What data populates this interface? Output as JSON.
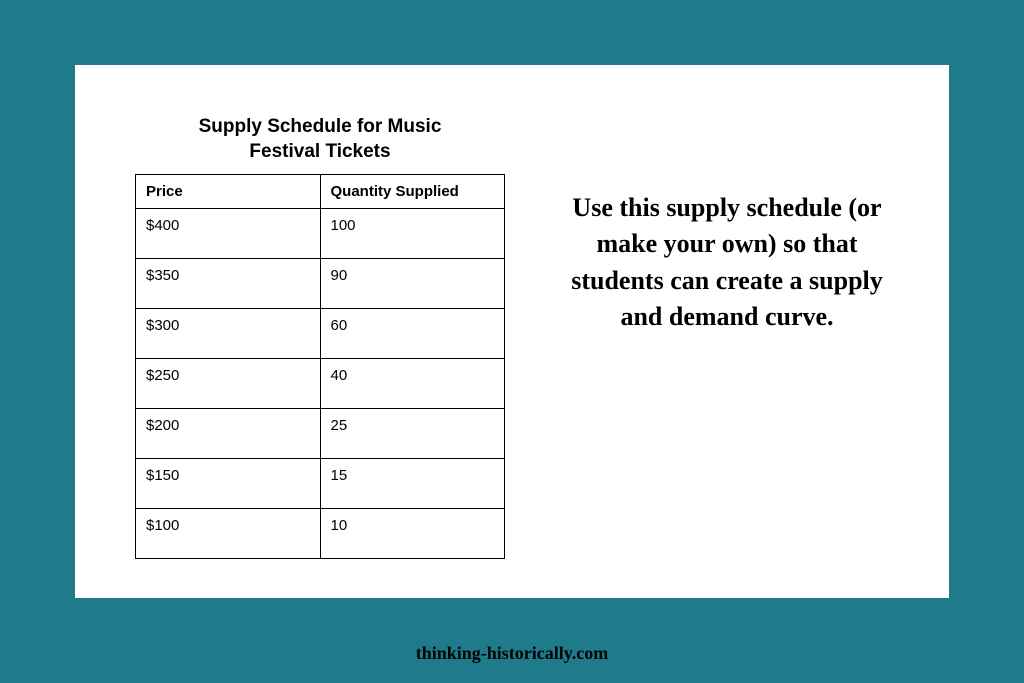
{
  "page": {
    "background_color": "#1f7a8c",
    "panel_background": "#ffffff"
  },
  "table": {
    "title": "Supply Schedule for Music Festival Tickets",
    "title_fontsize": 19,
    "headers": {
      "col1": "Price",
      "col2": "Quantity Supplied"
    },
    "rows": [
      {
        "price": "$400",
        "quantity": "100"
      },
      {
        "price": "$350",
        "quantity": "90"
      },
      {
        "price": "$300",
        "quantity": "60"
      },
      {
        "price": "$250",
        "quantity": "40"
      },
      {
        "price": "$200",
        "quantity": "25"
      },
      {
        "price": "$150",
        "quantity": "15"
      },
      {
        "price": "$100",
        "quantity": "10"
      }
    ],
    "border_color": "#000000",
    "cell_fontsize": 15,
    "header_fontsize": 15
  },
  "instruction": {
    "text": "Use this supply schedule (or make your own) so that students can create a supply and demand curve.",
    "fontsize": 26,
    "fontweight": "bold",
    "color": "#000000",
    "font_family": "Georgia, serif"
  },
  "footer": {
    "text": "thinking-historically.com",
    "fontsize": 18,
    "color": "#000000"
  }
}
